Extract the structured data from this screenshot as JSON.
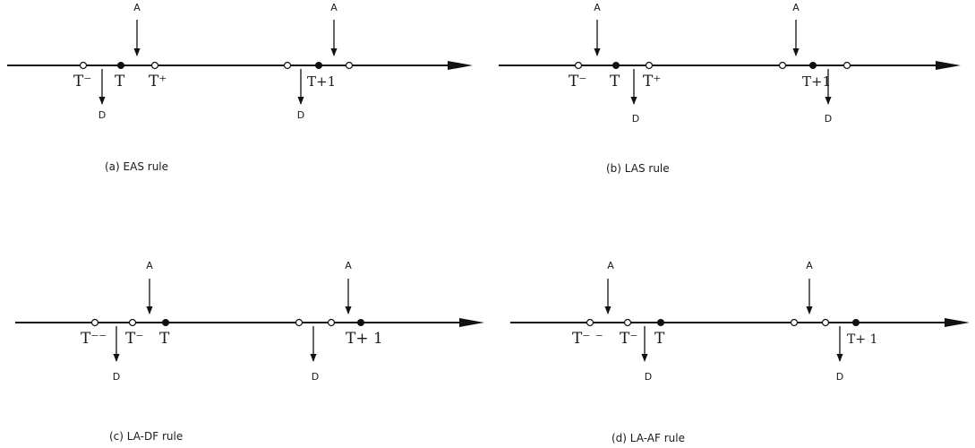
{
  "panels": [
    {
      "caption": "(a) EAS rule",
      "arrival_label": "A",
      "departure_label": "D",
      "time_labels": [
        "T⁻",
        "T",
        "T⁺",
        "T+1"
      ],
      "superscripts": [
        "",
        "",
        "+",
        ""
      ]
    },
    {
      "caption": "(b) LAS rule",
      "arrival_label": "A",
      "departure_label": "D",
      "time_labels": [
        "T⁻",
        "T",
        "T⁺",
        "T+1"
      ],
      "superscripts": [
        "",
        "",
        "+",
        ""
      ]
    },
    {
      "caption": "(c) LA-DF rule",
      "arrival_label": "A",
      "departure_label": "D",
      "time_labels": [
        "T⁻⁻",
        "T⁻",
        "T",
        "T+ 1"
      ]
    },
    {
      "caption": "(d) LA-AF rule",
      "arrival_label": "A",
      "departure_label": "D",
      "time_labels": [
        "T⁻ ⁻",
        "T⁻",
        "T",
        "T+ 1"
      ]
    }
  ],
  "colors": {
    "stroke": "#111111",
    "filled_dot": "#111111",
    "open_dot": "#ffffff"
  }
}
